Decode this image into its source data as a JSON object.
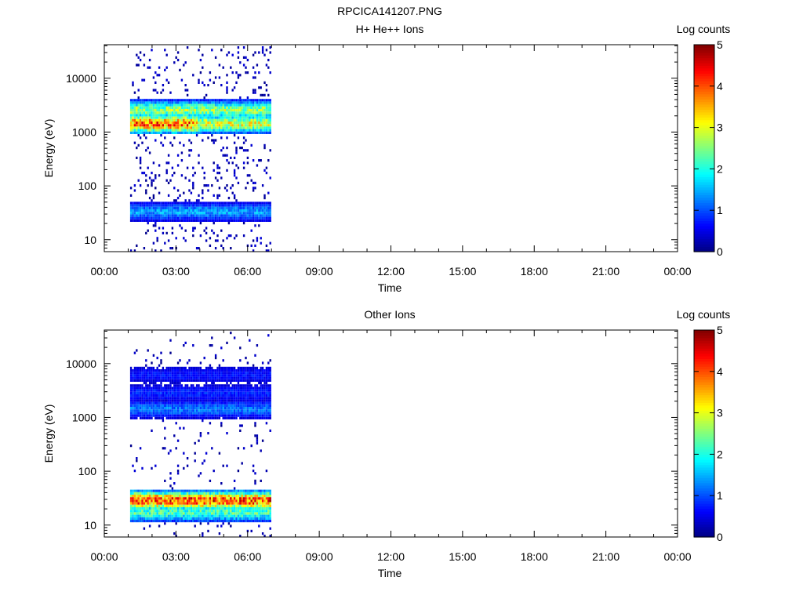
{
  "page_title": "RPCICA141207.PNG",
  "chart_data": [
    {
      "type": "heatmap",
      "title": "H+ He++ Ions",
      "xlabel": "Time",
      "ylabel": "Energy (eV)",
      "x_ticks": [
        "00:00",
        "03:00",
        "06:00",
        "09:00",
        "12:00",
        "15:00",
        "18:00",
        "21:00",
        "00:00"
      ],
      "x_range_hours": [
        0,
        24
      ],
      "y_scale": "log",
      "y_ticks": [
        "10",
        "100",
        "1000",
        "10000"
      ],
      "y_range": [
        6,
        42000
      ],
      "data_time_range_hours": [
        1.08,
        6.95
      ],
      "colorbar": {
        "label": "Log counts",
        "range": [
          0,
          5
        ],
        "ticks": [
          "0",
          "1",
          "2",
          "3",
          "4",
          "5"
        ]
      },
      "bands": [
        {
          "energy": 1500,
          "value": 3.8,
          "hours": [
            1.08,
            3.9
          ]
        },
        {
          "energy": 1500,
          "value": 2.9,
          "hours": [
            3.9,
            6.95
          ]
        },
        {
          "energy": 2700,
          "value": 2.6,
          "hours": [
            1.08,
            6.95
          ]
        },
        {
          "energy": 35,
          "value": 1.4,
          "hours": [
            1.08,
            6.95
          ]
        }
      ]
    },
    {
      "type": "heatmap",
      "title": "Other Ions",
      "xlabel": "Time",
      "ylabel": "Energy (eV)",
      "x_ticks": [
        "00:00",
        "03:00",
        "06:00",
        "09:00",
        "12:00",
        "15:00",
        "18:00",
        "21:00",
        "00:00"
      ],
      "x_range_hours": [
        0,
        24
      ],
      "y_scale": "log",
      "y_ticks": [
        "10",
        "100",
        "1000",
        "10000"
      ],
      "y_range": [
        6,
        42000
      ],
      "data_time_range_hours": [
        1.08,
        6.95
      ],
      "colorbar": {
        "label": "Log counts",
        "range": [
          0,
          5
        ],
        "ticks": [
          "0",
          "1",
          "2",
          "3",
          "4",
          "5"
        ]
      },
      "bands": [
        {
          "energy": 30,
          "value": 4.0,
          "hours": [
            1.08,
            6.95
          ]
        },
        {
          "energy": 18,
          "value": 2.2,
          "hours": [
            1.08,
            6.95
          ]
        },
        {
          "energy": 1500,
          "value": 1.2,
          "hours": [
            1.08,
            6.95
          ]
        },
        {
          "energy": 3000,
          "value": 0.8,
          "hours": [
            1.08,
            6.95
          ]
        },
        {
          "energy": 6500,
          "value": 0.7,
          "hours": [
            1.08,
            6.95
          ]
        }
      ]
    }
  ]
}
